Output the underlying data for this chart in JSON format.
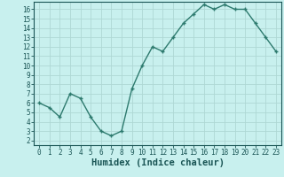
{
  "x": [
    0,
    1,
    2,
    3,
    4,
    5,
    6,
    7,
    8,
    9,
    10,
    11,
    12,
    13,
    14,
    15,
    16,
    17,
    18,
    19,
    20,
    21,
    22,
    23
  ],
  "y": [
    6.0,
    5.5,
    4.5,
    7.0,
    6.5,
    4.5,
    3.0,
    2.5,
    3.0,
    7.5,
    10.0,
    12.0,
    11.5,
    13.0,
    14.5,
    15.5,
    16.5,
    16.0,
    16.5,
    16.0,
    16.0,
    14.5,
    13.0,
    11.5
  ],
  "line_color": "#2d7a6e",
  "marker": "+",
  "bg_color": "#c8f0ee",
  "grid_color": "#aed8d4",
  "xlabel": "Humidex (Indice chaleur)",
  "xlim_min": -0.5,
  "xlim_max": 23.5,
  "ylim_min": 1.5,
  "ylim_max": 16.8,
  "xticks": [
    0,
    1,
    2,
    3,
    4,
    5,
    6,
    7,
    8,
    9,
    10,
    11,
    12,
    13,
    14,
    15,
    16,
    17,
    18,
    19,
    20,
    21,
    22,
    23
  ],
  "yticks": [
    2,
    3,
    4,
    5,
    6,
    7,
    8,
    9,
    10,
    11,
    12,
    13,
    14,
    15,
    16
  ],
  "axis_color": "#1a5555",
  "tick_fontsize": 5.5,
  "xlabel_fontsize": 7.5,
  "linewidth": 1.0,
  "markersize": 3.5
}
